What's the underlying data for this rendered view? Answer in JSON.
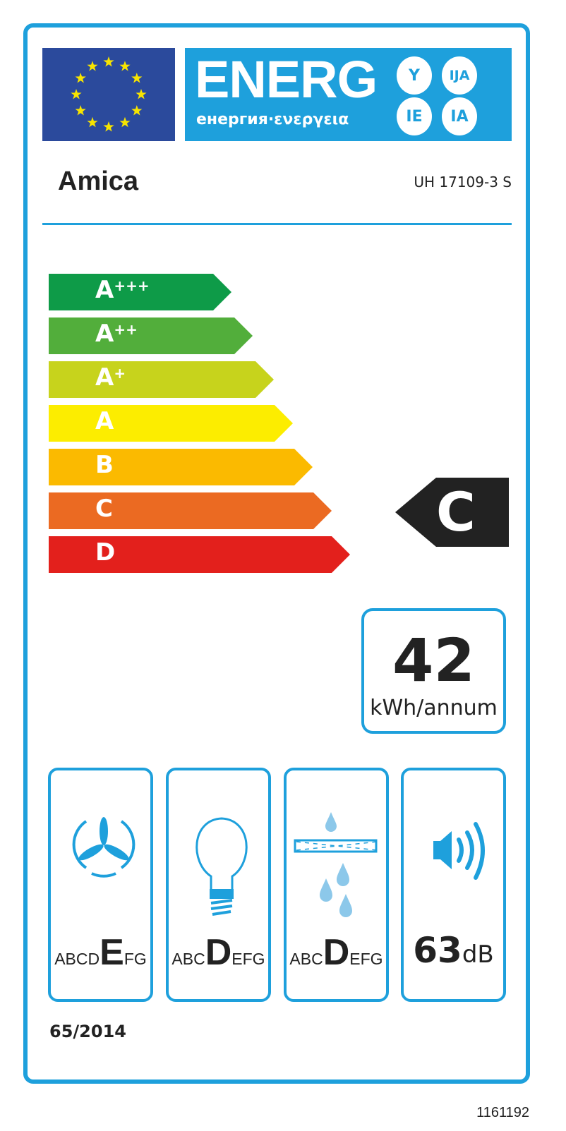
{
  "header": {
    "energy_word": "ENERG",
    "energy_sub": "енергия·ενεργεια",
    "suffixes": [
      "Y",
      "IJA",
      "IE",
      "IA"
    ]
  },
  "supplier": "Amica",
  "model": "UH 17109-3 S",
  "scale": [
    {
      "label": "A",
      "sup": "+++",
      "color": "#0e9b48"
    },
    {
      "label": "A",
      "sup": "++",
      "color": "#52ae3b"
    },
    {
      "label": "A",
      "sup": "+",
      "color": "#c7d31c"
    },
    {
      "label": "A",
      "sup": "",
      "color": "#fced00"
    },
    {
      "label": "B",
      "sup": "",
      "color": "#fbba00"
    },
    {
      "label": "C",
      "sup": "",
      "color": "#eb6a22"
    },
    {
      "label": "D",
      "sup": "",
      "color": "#e3201c"
    }
  ],
  "rating": "C",
  "consumption": {
    "value": "42",
    "unit": "kWh/annum"
  },
  "fluid_dynamic": {
    "pre": "ABCD",
    "cls": "E",
    "post": "FG"
  },
  "lighting": {
    "pre": "ABC",
    "cls": "D",
    "post": "EFG"
  },
  "grease": {
    "pre": "ABC",
    "cls": "D",
    "post": "EFG"
  },
  "noise": {
    "value": "63",
    "unit": "dB"
  },
  "regulation": "65/2014",
  "code": "1161192",
  "colors": {
    "accent": "#1ea0dc",
    "eu_blue": "#2b4a9c",
    "indicator": "#222222"
  }
}
